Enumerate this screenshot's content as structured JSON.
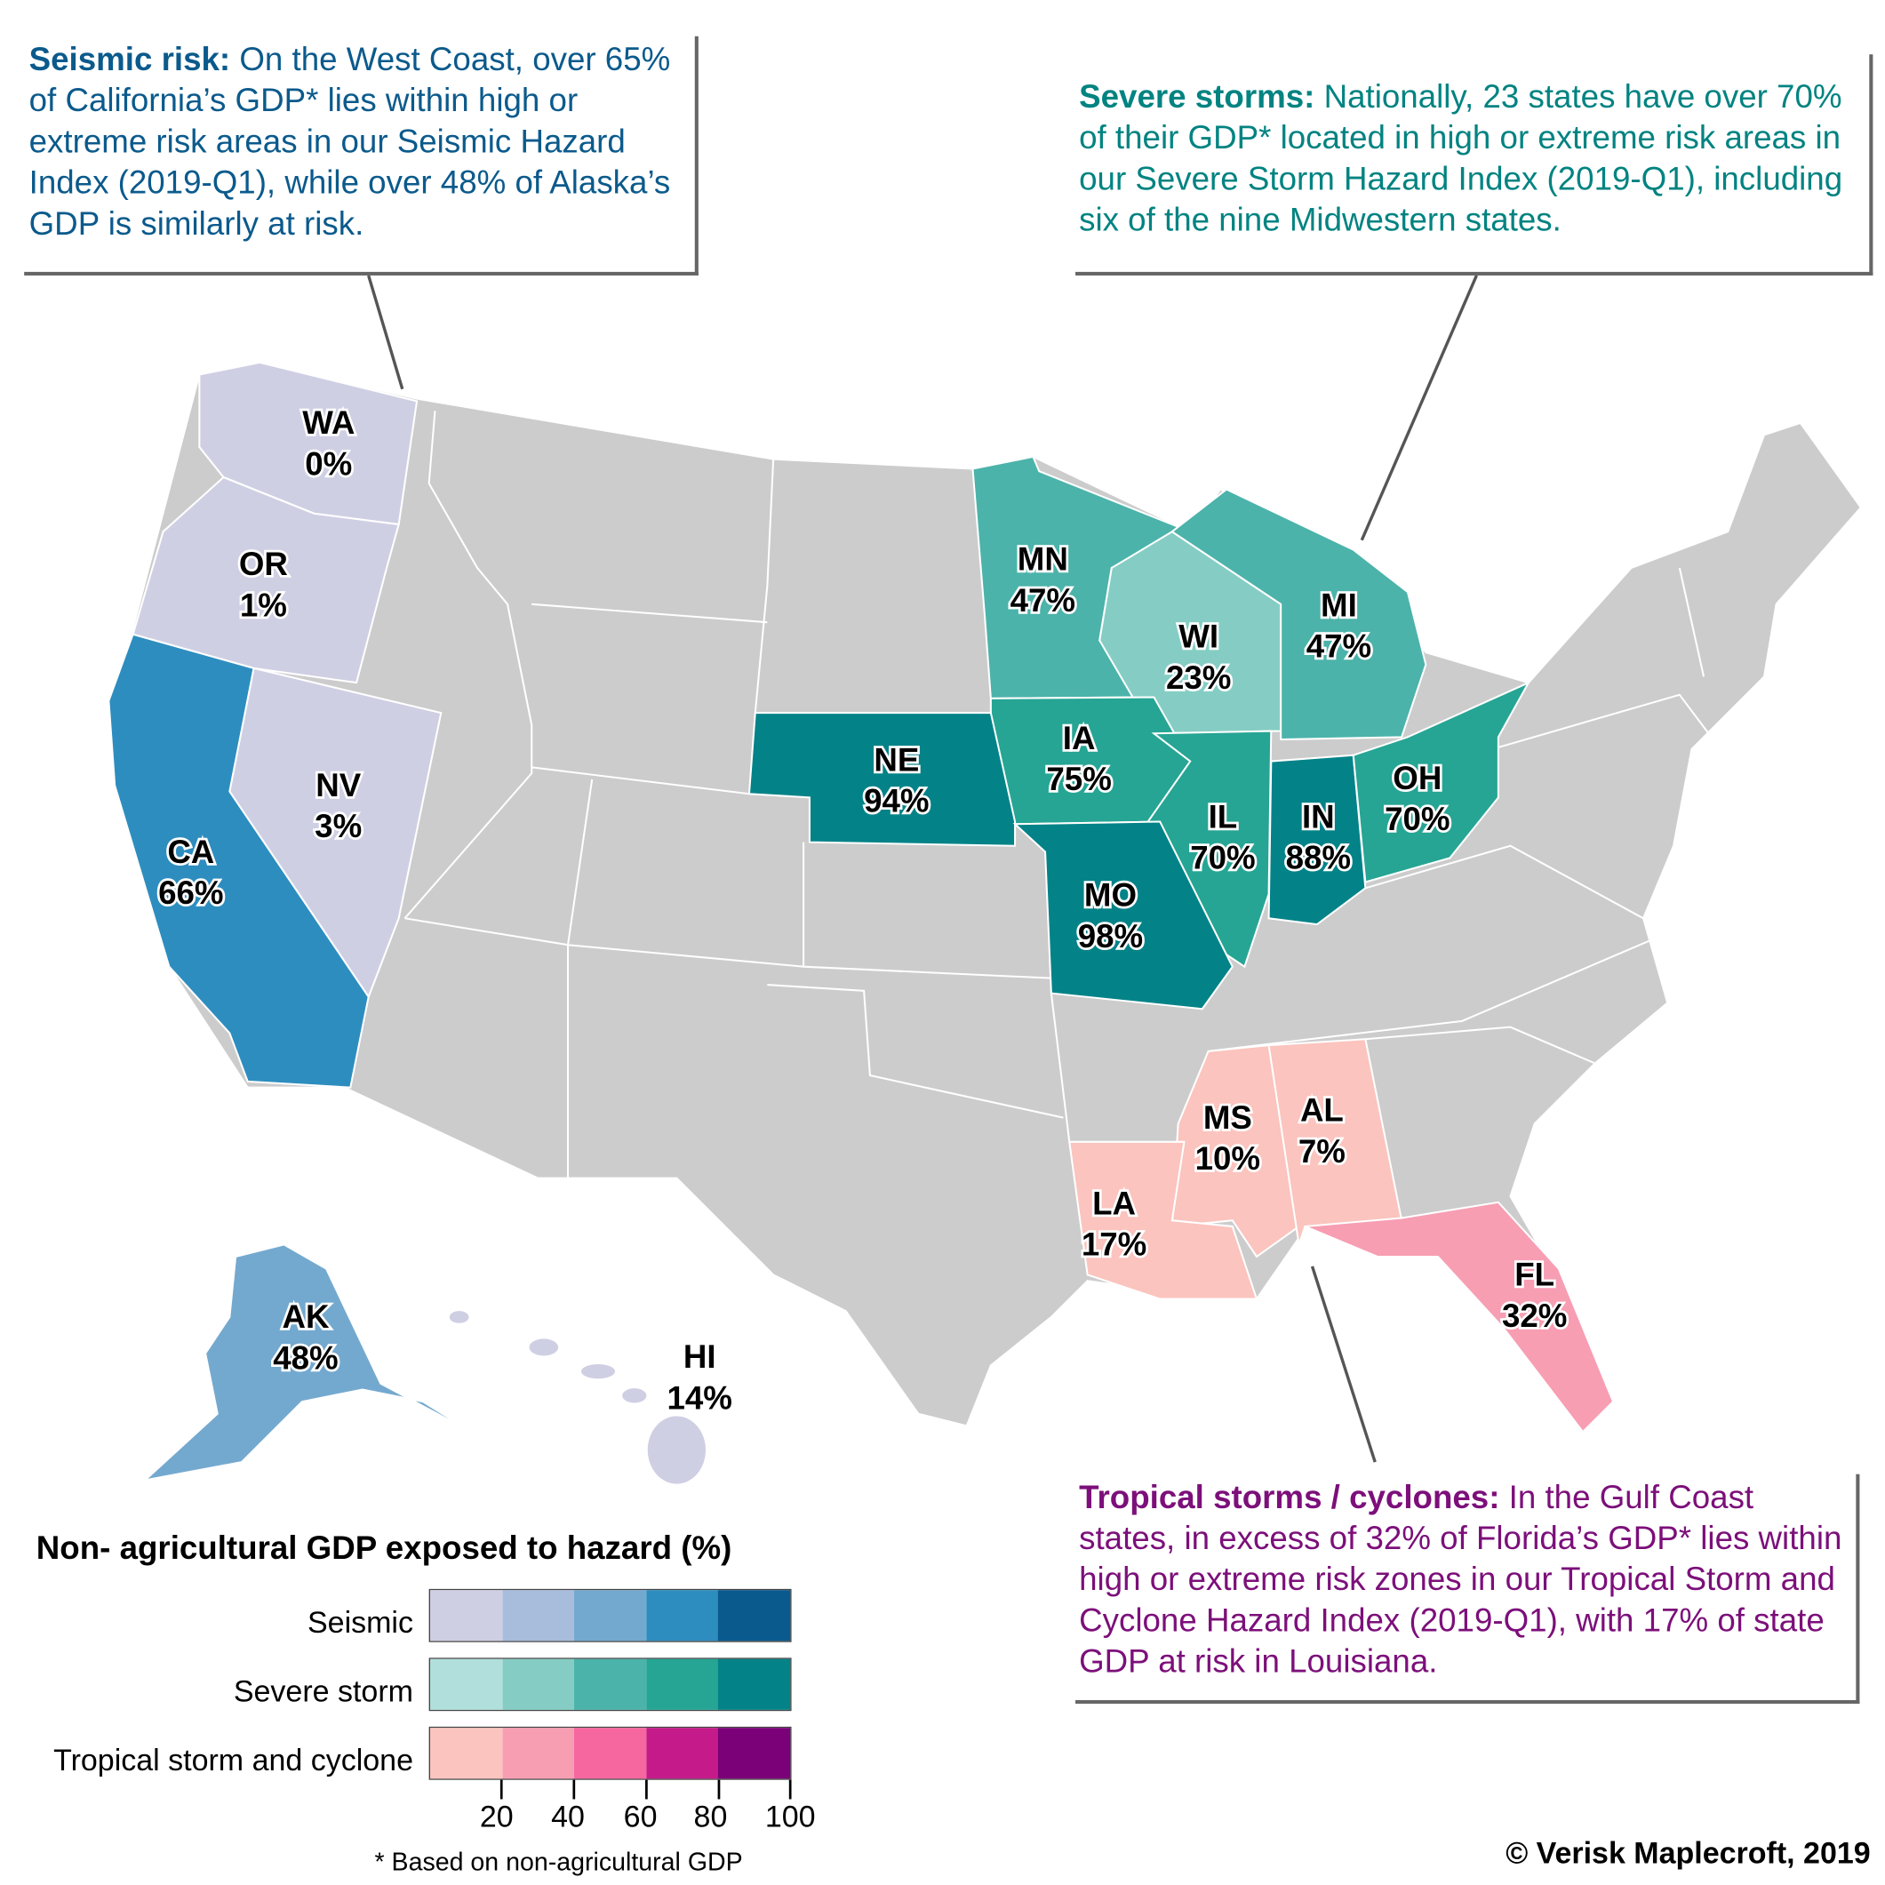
{
  "callouts": {
    "seismic": {
      "heading": "Seismic risk:",
      "body": " On the West Coast, over 65% of California’s GDP* lies within high or extreme risk areas in our Seismic Hazard Index (2019-Q1), while over 48% of Alaska’s GDP is similarly at risk.",
      "color": "#0b5a8c"
    },
    "severe": {
      "heading": "Severe storms:",
      "body": " Nationally, 23 states have over 70% of their GDP* located in high or extreme risk areas in our Severe Storm Hazard Index (2019-Q1), including six of the nine Midwestern states.",
      "color": "#008381"
    },
    "tropical": {
      "heading": "Tropical storms / cyclones:",
      "body": " In the Gulf Coast states, in excess of 32% of Florida’s GDP* lies within high or extreme risk zones in our Tropical Storm and Cyclone Hazard Index (2019-Q1), with 17% of state GDP at risk in Louisiana.",
      "color": "#7c0f7a"
    }
  },
  "states": [
    {
      "code": "WA",
      "value": "0%",
      "hazard": "Seismic",
      "color": "#cfcfe4"
    },
    {
      "code": "OR",
      "value": "1%",
      "hazard": "Seismic",
      "color": "#cfcfe4"
    },
    {
      "code": "NV",
      "value": "3%",
      "hazard": "Seismic",
      "color": "#cfcfe4"
    },
    {
      "code": "CA",
      "value": "66%",
      "hazard": "Seismic",
      "color": "#2e8dbf"
    },
    {
      "code": "AK",
      "value": "48%",
      "hazard": "Seismic",
      "color": "#74a9cf"
    },
    {
      "code": "HI",
      "value": "14%",
      "hazard": "Seismic",
      "color": "#cfcfe4"
    },
    {
      "code": "MN",
      "value": "47%",
      "hazard": "Severe storm",
      "color": "#4bb3aa"
    },
    {
      "code": "WI",
      "value": "23%",
      "hazard": "Severe storm",
      "color": "#85cdc4"
    },
    {
      "code": "MI",
      "value": "47%",
      "hazard": "Severe storm",
      "color": "#4bb3aa"
    },
    {
      "code": "IA",
      "value": "75%",
      "hazard": "Severe storm",
      "color": "#26a594"
    },
    {
      "code": "NE",
      "value": "94%",
      "hazard": "Severe storm",
      "color": "#038388"
    },
    {
      "code": "IL",
      "value": "70%",
      "hazard": "Severe storm",
      "color": "#26a594"
    },
    {
      "code": "IN",
      "value": "88%",
      "hazard": "Severe storm",
      "color": "#038388"
    },
    {
      "code": "OH",
      "value": "70%",
      "hazard": "Severe storm",
      "color": "#26a594"
    },
    {
      "code": "MO",
      "value": "98%",
      "hazard": "Severe storm",
      "color": "#038388"
    },
    {
      "code": "MS",
      "value": "10%",
      "hazard": "Tropical storm and cyclone",
      "color": "#fbc4be"
    },
    {
      "code": "AL",
      "value": "7%",
      "hazard": "Tropical storm and cyclone",
      "color": "#fbc4be"
    },
    {
      "code": "LA",
      "value": "17%",
      "hazard": "Tropical storm and cyclone",
      "color": "#fbc4be"
    },
    {
      "code": "FL",
      "value": "32%",
      "hazard": "Tropical storm and cyclone",
      "color": "#f79eb3"
    }
  ],
  "other_states_color": "#cccccc",
  "legend": {
    "title": "Non- agricultural GDP exposed to hazard (%)",
    "rows": [
      {
        "label": "Seismic",
        "colors": [
          "#cfcfe4",
          "#a8bcdc",
          "#74a9cf",
          "#2e8dbf",
          "#0a5a8e"
        ]
      },
      {
        "label": "Severe storm",
        "colors": [
          "#b1dfdb",
          "#85cdc4",
          "#4bb3aa",
          "#26a594",
          "#038388"
        ]
      },
      {
        "label": "Tropical storm and cyclone",
        "colors": [
          "#fbc4be",
          "#f79eb3",
          "#f667a0",
          "#c51b8a",
          "#7a0177"
        ]
      }
    ],
    "ticks": [
      "20",
      "40",
      "60",
      "80",
      "100"
    ],
    "footnote": "* Based on non-agricultural GDP"
  },
  "copyright": "© Verisk Maplecroft, 2019"
}
